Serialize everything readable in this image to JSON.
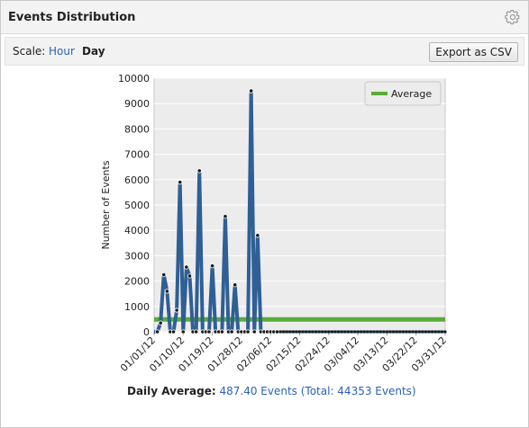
{
  "panel": {
    "title": "Events Distribution",
    "settings_icon": "gear-icon"
  },
  "toolbar": {
    "scale_label": "Scale:",
    "scale_options": [
      "Hour",
      "Day"
    ],
    "selected_scale": "Day",
    "export_label": "Export as CSV"
  },
  "chart_data": {
    "type": "line",
    "ylabel": "Number of Events",
    "xlabel": "",
    "ylim": [
      0,
      10000
    ],
    "yticks": [
      "0",
      "1000",
      "2000",
      "3000",
      "4000",
      "5000",
      "6000",
      "7000",
      "8000",
      "9000",
      "10000"
    ],
    "xtick_labels": [
      "01/01/12",
      "01/10/12",
      "01/19/12",
      "01/28/12",
      "02/06/12",
      "02/15/12",
      "02/24/12",
      "03/04/12",
      "03/13/12",
      "03/22/12",
      "03/31/12"
    ],
    "grid": true,
    "legend_position": "top-right",
    "colors": {
      "events": "#2f5f95",
      "average": "#5aab3a",
      "marker": "#1a1a1a"
    },
    "series": [
      {
        "key": "events",
        "dates": [
          "01/01/12",
          "01/02/12",
          "01/03/12",
          "01/04/12",
          "01/05/12",
          "01/06/12",
          "01/07/12",
          "01/08/12",
          "01/09/12",
          "01/10/12",
          "01/11/12",
          "01/12/12",
          "01/13/12",
          "01/14/12",
          "01/15/12",
          "01/16/12",
          "01/17/12",
          "01/18/12",
          "01/19/12",
          "01/20/12",
          "01/21/12",
          "01/22/12",
          "01/23/12",
          "01/24/12",
          "01/25/12",
          "01/26/12",
          "01/27/12",
          "01/28/12",
          "01/29/12",
          "01/30/12",
          "01/31/12",
          "02/01/12",
          "02/02/12",
          "02/03/12",
          "02/04/12",
          "02/05/12",
          "02/06/12",
          "02/07/12",
          "02/08/12"
        ],
        "values": [
          0,
          0,
          350,
          2250,
          1600,
          0,
          0,
          850,
          5900,
          0,
          2550,
          2200,
          0,
          0,
          6350,
          0,
          0,
          0,
          2600,
          0,
          0,
          0,
          4550,
          0,
          0,
          1850,
          0,
          0,
          0,
          0,
          9500,
          0,
          3800,
          0,
          0,
          0,
          0,
          0,
          0
        ],
        "markers": [
          false,
          true,
          true,
          true,
          true,
          true,
          true,
          true,
          true,
          true,
          true,
          true,
          true,
          true,
          true,
          true,
          true,
          true,
          true,
          true,
          true,
          true,
          true,
          true,
          true,
          true,
          true,
          true,
          true,
          true,
          true,
          true,
          true,
          true,
          true,
          true,
          true,
          true,
          true
        ]
      },
      {
        "key": "average",
        "name": "Average",
        "value": 487.4
      }
    ],
    "flat_zero_until": "03/31/12"
  },
  "footer": {
    "label": "Daily Average:",
    "value": "487.40 Events (Total: 44353 Events)"
  }
}
